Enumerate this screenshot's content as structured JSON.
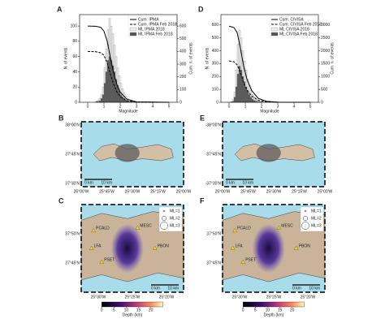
{
  "chart_data": [
    {
      "type": "histogram",
      "panel": "A",
      "xlabel": "Magnitude",
      "ylabel": "N. of events",
      "y2label": "Cum. n. of events",
      "xlim": [
        -0.5,
        5.5
      ],
      "xticks": [
        0,
        1,
        2,
        3,
        4,
        5
      ],
      "ylim": [
        0,
        115
      ],
      "yticks": [
        0,
        20,
        40,
        60,
        80,
        100
      ],
      "y2lim": [
        0,
        690
      ],
      "y2ticks": [
        0,
        100,
        200,
        300,
        400,
        500,
        600
      ],
      "legend": "upper right",
      "bins": [
        0.5,
        0.6,
        0.7,
        0.8,
        0.9,
        1.0,
        1.1,
        1.2,
        1.3,
        1.4,
        1.5,
        1.6,
        1.7,
        1.8,
        1.9,
        2.0,
        2.1,
        2.2,
        2.3,
        2.4,
        2.5,
        2.6,
        2.7,
        2.8,
        2.9,
        3.0
      ],
      "series": [
        {
          "name": "Cum. IPMA",
          "color": "#000000",
          "style": "line",
          "axis": "y2",
          "x": [
            0,
            0.5,
            0.8,
            1.0,
            1.2,
            1.4,
            1.6,
            1.8,
            2.0,
            2.4,
            3.0,
            5.0
          ],
          "values": [
            600,
            598,
            590,
            560,
            480,
            350,
            230,
            140,
            80,
            25,
            3,
            0
          ]
        },
        {
          "name": "Cum. IPMA Feb 2018",
          "color": "#000000",
          "style": "dashed",
          "axis": "y2",
          "x": [
            0,
            0.5,
            0.8,
            1.0,
            1.2,
            1.4,
            1.6,
            1.8,
            2.0,
            2.4,
            3.0,
            5.0
          ],
          "values": [
            400,
            398,
            390,
            370,
            310,
            220,
            140,
            80,
            45,
            12,
            1,
            0
          ]
        },
        {
          "name": "ML IPMA 2018",
          "color": "#eeeeee",
          "style": "bar",
          "values": [
            2,
            3,
            5,
            10,
            20,
            45,
            70,
            95,
            110,
            100,
            90,
            75,
            60,
            45,
            35,
            25,
            18,
            12,
            8,
            5,
            3,
            2,
            1,
            1,
            1
          ]
        },
        {
          "name": "ML IPMA Feb 2018",
          "color": "#555555",
          "style": "bar",
          "values": [
            1,
            1,
            2,
            5,
            10,
            25,
            40,
            55,
            60,
            55,
            48,
            40,
            30,
            22,
            15,
            10,
            7,
            5,
            3,
            2,
            1,
            1,
            0,
            0,
            0
          ]
        }
      ]
    },
    {
      "type": "histogram",
      "panel": "D",
      "xlabel": "Magnitude",
      "ylabel": "N. of events",
      "y2label": "Cum. n. of events",
      "xlim": [
        -0.5,
        5.5
      ],
      "xticks": [
        0,
        1,
        2,
        3,
        4,
        5
      ],
      "ylim": [
        0,
        680
      ],
      "yticks": [
        0,
        100,
        200,
        300,
        400,
        500,
        600
      ],
      "y2lim": [
        0,
        3400
      ],
      "y2ticks": [
        0,
        500,
        1000,
        1500,
        2000,
        2500,
        3000
      ],
      "legend": "upper right",
      "bins": [
        0.1,
        0.2,
        0.3,
        0.4,
        0.5,
        0.6,
        0.7,
        0.8,
        0.9,
        1.0,
        1.1,
        1.2,
        1.3,
        1.4,
        1.5,
        1.6,
        1.7,
        1.8,
        1.9,
        2.0,
        2.1,
        2.2,
        2.3,
        2.4,
        2.5
      ],
      "series": [
        {
          "name": "Cum. CIVISA",
          "color": "#000000",
          "style": "line",
          "axis": "y2",
          "x": [
            0,
            0.3,
            0.5,
            0.7,
            0.9,
            1.1,
            1.4,
            1.8,
            2.3,
            3.0,
            5.0
          ],
          "values": [
            2950,
            2900,
            2700,
            2100,
            1400,
            900,
            450,
            150,
            40,
            5,
            0
          ]
        },
        {
          "name": "Cum. CIVISA Feb 2018",
          "color": "#000000",
          "style": "dashed",
          "axis": "y2",
          "x": [
            0,
            0.3,
            0.5,
            0.7,
            0.9,
            1.1,
            1.4,
            1.8,
            2.3,
            3.0,
            5.0
          ],
          "values": [
            1600,
            1570,
            1450,
            1150,
            760,
            480,
            240,
            80,
            20,
            2,
            0
          ]
        },
        {
          "name": "ML CIVISA 2018",
          "color": "#eeeeee",
          "style": "bar",
          "values": [
            5,
            20,
            80,
            250,
            450,
            560,
            500,
            400,
            320,
            250,
            180,
            130,
            90,
            60,
            40,
            25,
            15,
            10,
            6,
            4,
            2,
            1,
            1,
            1
          ]
        },
        {
          "name": "ML CIVISA Feb 2018",
          "color": "#555555",
          "style": "bar",
          "values": [
            2,
            8,
            40,
            120,
            220,
            280,
            250,
            200,
            160,
            120,
            90,
            60,
            40,
            25,
            15,
            10,
            6,
            4,
            2,
            1,
            1,
            0,
            0,
            0
          ]
        }
      ]
    }
  ],
  "maps": [
    {
      "panel": "B",
      "lat_labels": [
        "38°00'N",
        "37°45'N",
        "37°30'N"
      ],
      "lon_labels": [
        "26°00'W",
        "25°45'W",
        "25°30'W",
        "25°15'W",
        "25°00'W"
      ],
      "scale": [
        "0 km",
        "10 km"
      ]
    },
    {
      "panel": "E",
      "lat_labels": [
        "38°00'N",
        "37°45'N",
        "37°30'N"
      ],
      "lon_labels": [
        "26°00'W",
        "25°45'W",
        "25°30'W",
        "25°15'W",
        "25°00'W"
      ],
      "scale": [
        "0 km",
        "10 km"
      ]
    },
    {
      "panel": "C",
      "lat_labels": [
        "37°50'N",
        "37°45'N"
      ],
      "lon_labels": [
        "25°30'W",
        "25°25'W",
        "25°20'W"
      ],
      "scale": [
        "0 km",
        "10 km"
      ],
      "stations": [
        "PCALD",
        "MESC",
        "LFA",
        "PBON",
        "PSET"
      ],
      "legend": [
        "ML=1",
        "ML=2",
        "ML=3"
      ],
      "colorbar": {
        "label": "Depth (km)",
        "lim": [
          0,
          25
        ],
        "ticks": [
          0,
          5,
          10,
          15,
          20
        ]
      }
    },
    {
      "panel": "F",
      "lat_labels": [
        "37°50'N",
        "37°45'N"
      ],
      "lon_labels": [
        "25°30'W",
        "25°25'W",
        "25°20'W"
      ],
      "scale": [
        "0 km",
        "10 km"
      ],
      "stations": [
        "PCALD",
        "MESC",
        "LFA",
        "PBON",
        "PSET"
      ],
      "legend": [
        "ML=1",
        "ML=2",
        "ML=3"
      ],
      "colorbar": {
        "label": "Depth (km)",
        "lim": [
          0,
          25
        ],
        "ticks": [
          0,
          5,
          10,
          15,
          20
        ]
      }
    }
  ]
}
